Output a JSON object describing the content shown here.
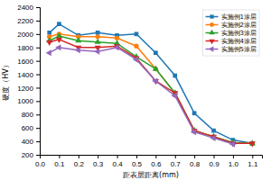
{
  "chart_data": {
    "type": "line",
    "xlabel": "距表层距离(mm)",
    "ylabel": "硬度（HV）",
    "xlim": [
      0.0,
      1.15
    ],
    "ylim": [
      200,
      2400
    ],
    "xticks": [
      {
        "value": 0.0,
        "label": "0.0"
      },
      0.1,
      0.2,
      0.3,
      0.4,
      0.5,
      0.6,
      0.7,
      0.8,
      0.9,
      {
        "value": 1.0,
        "label": "1.0"
      },
      1.1
    ],
    "yticks": [
      200,
      400,
      600,
      800,
      1000,
      1200,
      1400,
      1600,
      1800,
      2000,
      2200,
      2400
    ],
    "grid": false,
    "legend": "upper right",
    "series": [
      {
        "name": "实施例1涂层",
        "marker": "square",
        "line_style": "solid",
        "x": [
          0.05,
          0.1,
          0.2,
          0.3,
          0.4,
          0.5,
          0.6,
          0.7,
          0.8,
          0.9,
          1.0,
          1.1
        ],
        "values": [
          2020,
          2150,
          1980,
          2020,
          1980,
          2000,
          1720,
          1380,
          820,
          560,
          420,
          370
        ]
      },
      {
        "name": "实施例2涂层",
        "marker": "circle",
        "line_style": "solid",
        "x": [
          0.05,
          0.1,
          0.2,
          0.3,
          0.4,
          0.5,
          0.6,
          0.7,
          0.8,
          0.9,
          1.0,
          1.1
        ],
        "values": [
          1960,
          2000,
          1960,
          1960,
          1940,
          1820,
          1480,
          1120,
          560,
          470,
          380,
          370
        ]
      },
      {
        "name": "实施例3涂层",
        "marker": "triangle-up",
        "line_style": "solid",
        "x": [
          0.05,
          0.1,
          0.2,
          0.3,
          0.4,
          0.5,
          0.6,
          0.7,
          0.8,
          0.9,
          1.0,
          1.1
        ],
        "values": [
          1900,
          1970,
          1900,
          1880,
          1860,
          1660,
          1480,
          1120,
          560,
          470,
          380,
          370
        ]
      },
      {
        "name": "实施例4涂层",
        "marker": "triangle-down",
        "line_style": "solid",
        "x": [
          0.05,
          0.1,
          0.2,
          0.3,
          0.4,
          0.5,
          0.6,
          0.7,
          0.8,
          0.9,
          1.0,
          1.1
        ],
        "values": [
          1880,
          1920,
          1800,
          1800,
          1820,
          1640,
          1300,
          1120,
          560,
          470,
          370,
          370
        ]
      },
      {
        "name": "实施例5涂层",
        "marker": "triangle-left",
        "line_style": "solid",
        "x": [
          0.05,
          0.1,
          0.2,
          0.3,
          0.4,
          0.5,
          0.6,
          0.7,
          0.8,
          0.9,
          1.0
        ],
        "values": [
          1720,
          1800,
          1760,
          1740,
          1800,
          1620,
          1300,
          1080,
          540,
          450,
          360
        ]
      }
    ]
  }
}
